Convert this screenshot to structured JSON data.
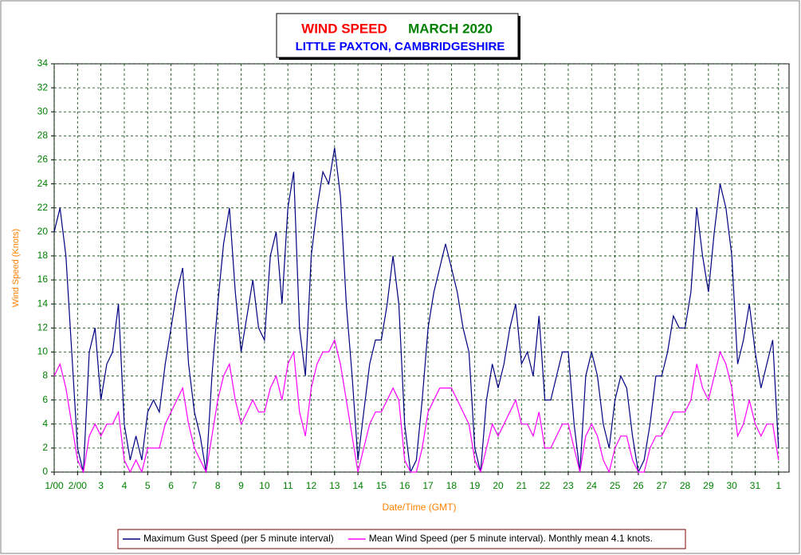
{
  "chart_data": {
    "type": "line",
    "title": "WIND SPEED",
    "title_color": "#ff0000",
    "subtitle": "MARCH 2020",
    "subtitle_color": "#008000",
    "location": "LITTLE PAXTON, CAMBRIDGESHIRE",
    "location_color": "#0000ff",
    "x_label": "Date/Time (GMT)",
    "y_label": "Wind Speed (Knots)",
    "label_color": "#ff8000",
    "tick_color": "#008000",
    "grid": true,
    "xlim": [
      1,
      32.45
    ],
    "ylim": [
      0,
      34
    ],
    "yticks": [
      0,
      2,
      4,
      6,
      8,
      10,
      12,
      14,
      16,
      18,
      20,
      22,
      24,
      26,
      28,
      30,
      32,
      34
    ],
    "xticks": [
      {
        "value": 1,
        "label": "1/00"
      },
      {
        "value": 2,
        "label": "2/00"
      },
      3,
      4,
      5,
      6,
      7,
      8,
      9,
      10,
      11,
      12,
      13,
      14,
      15,
      16,
      17,
      18,
      19,
      20,
      21,
      22,
      23,
      24,
      25,
      26,
      27,
      28,
      29,
      30,
      31,
      {
        "value": 32,
        "label": "1"
      }
    ],
    "x": [
      1,
      1.25,
      1.5,
      1.75,
      2,
      2.25,
      2.5,
      2.75,
      3,
      3.25,
      3.5,
      3.75,
      4,
      4.25,
      4.5,
      4.75,
      5,
      5.25,
      5.5,
      5.75,
      6,
      6.25,
      6.5,
      6.75,
      7,
      7.25,
      7.5,
      7.75,
      8,
      8.25,
      8.5,
      8.75,
      9,
      9.25,
      9.5,
      9.75,
      10,
      10.25,
      10.5,
      10.75,
      11,
      11.25,
      11.5,
      11.75,
      12,
      12.25,
      12.5,
      12.75,
      13,
      13.25,
      13.5,
      13.75,
      14,
      14.25,
      14.5,
      14.75,
      15,
      15.25,
      15.5,
      15.75,
      16,
      16.25,
      16.5,
      16.75,
      17,
      17.25,
      17.5,
      17.75,
      18,
      18.25,
      18.5,
      18.75,
      19,
      19.25,
      19.5,
      19.75,
      20,
      20.25,
      20.5,
      20.75,
      21,
      21.25,
      21.5,
      21.75,
      22,
      22.25,
      22.5,
      22.75,
      23,
      23.25,
      23.5,
      23.75,
      24,
      24.25,
      24.5,
      24.75,
      25,
      25.25,
      25.5,
      25.75,
      26,
      26.25,
      26.5,
      26.75,
      27,
      27.25,
      27.5,
      27.75,
      28,
      28.25,
      28.5,
      28.75,
      29,
      29.25,
      29.5,
      29.75,
      30,
      30.25,
      30.5,
      30.75,
      31,
      31.25,
      31.5,
      31.75,
      32
    ],
    "series": [
      {
        "name": "Maximum Gust Speed (per 5 minute interval)",
        "color": "#000080",
        "values": [
          20,
          22,
          18,
          10,
          2,
          0,
          10,
          12,
          6,
          9,
          10,
          14,
          4,
          1,
          3,
          1,
          5,
          6,
          5,
          9,
          12,
          15,
          17,
          9,
          5,
          3,
          0,
          8,
          14,
          19,
          22,
          15,
          10,
          13,
          16,
          12,
          11,
          18,
          20,
          14,
          22,
          25,
          12,
          8,
          18,
          22,
          25,
          24,
          27,
          23,
          14,
          8,
          1,
          5,
          9,
          11,
          11,
          14,
          18,
          14,
          4,
          0,
          1,
          6,
          12,
          15,
          17,
          19,
          17,
          15,
          12,
          10,
          2,
          0,
          6,
          9,
          7,
          9,
          12,
          14,
          9,
          10,
          8,
          13,
          6,
          6,
          8,
          10,
          10,
          4,
          0,
          8,
          10,
          8,
          4,
          2,
          6,
          8,
          7,
          3,
          0,
          1,
          4,
          8,
          8,
          10,
          13,
          12,
          12,
          15,
          22,
          18,
          15,
          20,
          24,
          22,
          18,
          9,
          11,
          14,
          10,
          7,
          9,
          11,
          2
        ]
      },
      {
        "name": "Mean Wind Speed (per 5 minute interval). Monthly mean 4.1 knots.",
        "color": "#ff00ff",
        "values": [
          8,
          9,
          7,
          4,
          1,
          0,
          3,
          4,
          3,
          4,
          4,
          5,
          1,
          0,
          1,
          0,
          2,
          2,
          2,
          4,
          5,
          6,
          7,
          4,
          2,
          1,
          0,
          3,
          6,
          8,
          9,
          6,
          4,
          5,
          6,
          5,
          5,
          7,
          8,
          6,
          9,
          10,
          5,
          3,
          7,
          9,
          10,
          10,
          11,
          9,
          6,
          3,
          0,
          2,
          4,
          5,
          5,
          6,
          7,
          6,
          1,
          0,
          0,
          2,
          5,
          6,
          7,
          7,
          7,
          6,
          5,
          4,
          1,
          0,
          2,
          4,
          3,
          4,
          5,
          6,
          4,
          4,
          3,
          5,
          2,
          2,
          3,
          4,
          4,
          2,
          0,
          3,
          4,
          3,
          1,
          0,
          2,
          3,
          3,
          1,
          0,
          0,
          2,
          3,
          3,
          4,
          5,
          5,
          5,
          6,
          9,
          7,
          6,
          8,
          10,
          9,
          7,
          3,
          4,
          6,
          4,
          3,
          4,
          4,
          1
        ]
      }
    ]
  }
}
